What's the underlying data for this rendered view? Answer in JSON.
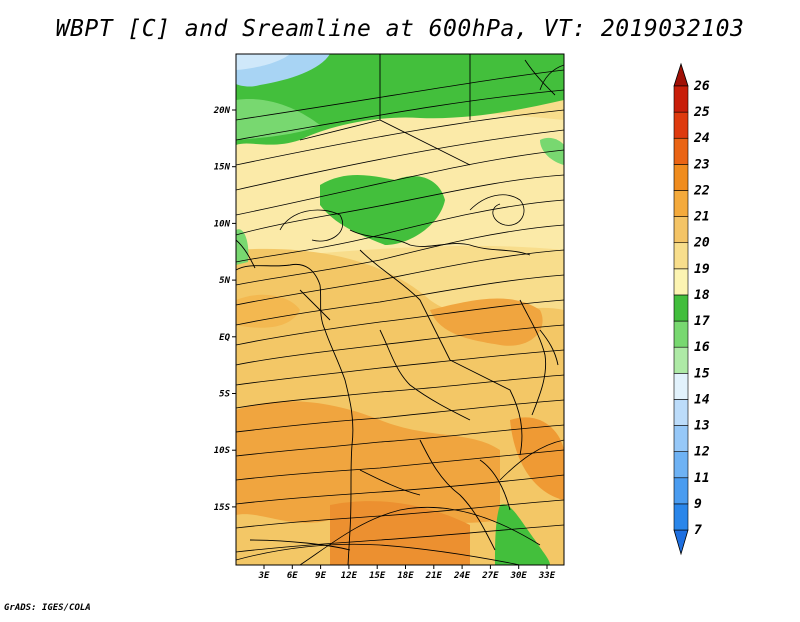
{
  "title": "WBPT [C] and Sreamline at 600hPa, VT: 2019032103",
  "footer": "GrADS: IGES/COLA",
  "map": {
    "lat_ticks": [
      "20N",
      "15N",
      "10N",
      "5N",
      "EQ",
      "5S",
      "10S",
      "15S"
    ],
    "lon_ticks": [
      "3E",
      "6E",
      "9E",
      "12E",
      "15E",
      "18E",
      "21E",
      "24E",
      "27E",
      "30E",
      "33E"
    ]
  },
  "colorbar": {
    "labels": [
      "7",
      "9",
      "11",
      "12",
      "13",
      "14",
      "15",
      "16",
      "17",
      "18",
      "19",
      "20",
      "21",
      "22",
      "23",
      "24",
      "25",
      "26"
    ],
    "colors": [
      "#1e6fe0",
      "#2a86ea",
      "#4a9cf0",
      "#6eb2f4",
      "#96c8f8",
      "#bcdcfa",
      "#e2f2fc",
      "#aeeaa6",
      "#78d870",
      "#42be3c",
      "#fcf4b2",
      "#f8de8c",
      "#f4c466",
      "#f4aa3c",
      "#f08c1e",
      "#ea6414",
      "#de3a0e",
      "#c81e0a",
      "#a01006"
    ]
  },
  "colors": {
    "field_warm": "#f3c766",
    "field_hot": "#f0a53f",
    "field_light": "#f8dd8c",
    "field_green": "#43bf3c",
    "field_blue": "#a8d4f4"
  }
}
